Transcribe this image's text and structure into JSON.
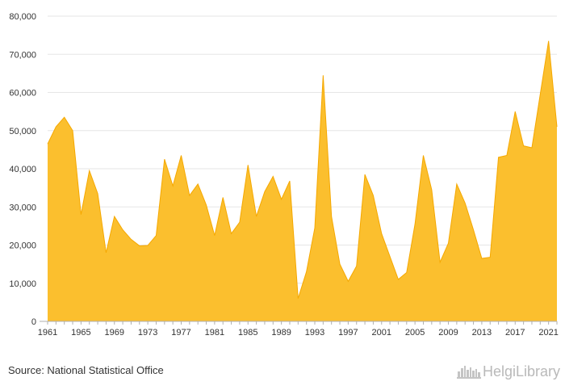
{
  "chart_data": {
    "type": "area",
    "x": [
      1961,
      1962,
      1963,
      1964,
      1965,
      1966,
      1967,
      1968,
      1969,
      1970,
      1971,
      1972,
      1973,
      1974,
      1975,
      1976,
      1977,
      1978,
      1979,
      1980,
      1981,
      1982,
      1983,
      1984,
      1985,
      1986,
      1987,
      1988,
      1989,
      1990,
      1991,
      1992,
      1993,
      1994,
      1995,
      1996,
      1997,
      1998,
      1999,
      2000,
      2001,
      2002,
      2003,
      2004,
      2005,
      2006,
      2007,
      2008,
      2009,
      2010,
      2011,
      2012,
      2013,
      2014,
      2015,
      2016,
      2017,
      2018,
      2019,
      2020,
      2021,
      2022
    ],
    "values": [
      46500,
      51000,
      53500,
      50000,
      28000,
      39500,
      33500,
      18000,
      27500,
      24000,
      21500,
      19800,
      19900,
      22500,
      42500,
      35500,
      43500,
      33000,
      36000,
      30500,
      22500,
      32500,
      23000,
      26000,
      41000,
      27500,
      34000,
      38000,
      32000,
      36800,
      6000,
      13000,
      24500,
      64500,
      27500,
      15000,
      10500,
      14500,
      38500,
      33000,
      23000,
      17000,
      11000,
      12800,
      25500,
      43500,
      34500,
      15500,
      20500,
      36000,
      31000,
      24000,
      16500,
      16800,
      43000,
      43500,
      55000,
      46000,
      45500,
      59500,
      73500,
      51000
    ],
    "x_tick_labels": [
      "1961",
      "1965",
      "1969",
      "1973",
      "1977",
      "1981",
      "1985",
      "1989",
      "1993",
      "1997",
      "2001",
      "2005",
      "2009",
      "2013",
      "2017",
      "2021"
    ],
    "y_tick_labels": [
      "0",
      "10,000",
      "20,000",
      "30,000",
      "40,000",
      "50,000",
      "60,000",
      "70,000",
      "80,000"
    ],
    "ylim": [
      0,
      80000
    ],
    "xlim": [
      1961,
      2022
    ],
    "grid": "horizontal",
    "title": "",
    "xlabel": "",
    "ylabel": "",
    "colors": {
      "fill": "#FBBF2E",
      "stroke": "#F5A800",
      "grid": "#e6e6e6",
      "axis": "#b0b0b0"
    }
  },
  "footer": {
    "source_text": "Source: National Statistical Office",
    "brand_text": "HelgiLibrary",
    "brand_icon": "city-skyline-icon"
  }
}
